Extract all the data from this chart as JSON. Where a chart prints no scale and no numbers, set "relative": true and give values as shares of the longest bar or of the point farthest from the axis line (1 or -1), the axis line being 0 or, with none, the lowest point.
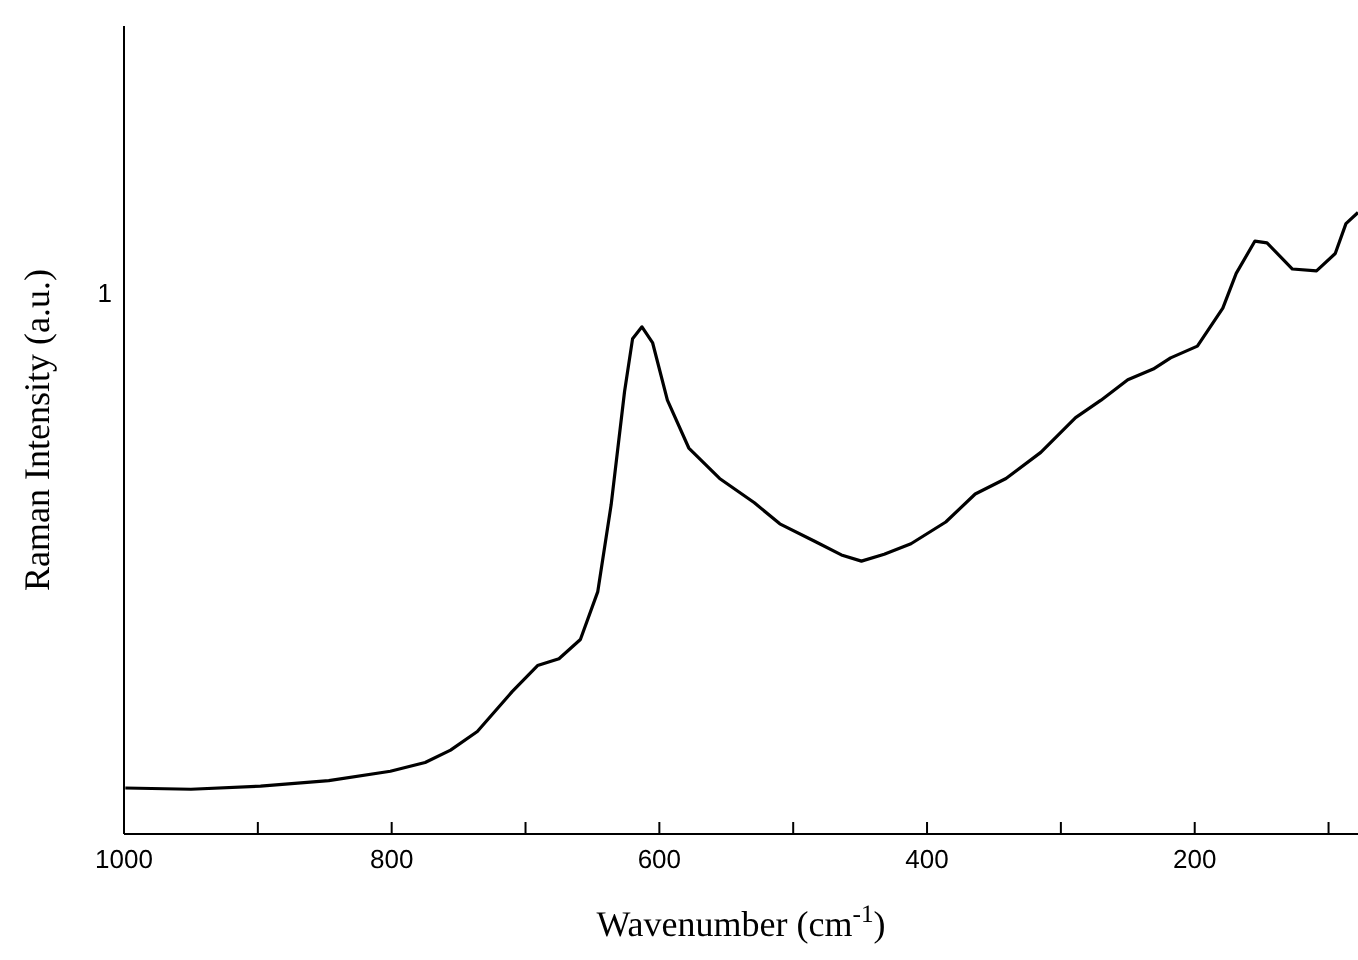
{
  "chart_data": {
    "type": "line",
    "xlabel": "Wavenumber (cm$^{-1}$)",
    "ylabel": "Raman Intensity (a.u.)",
    "xlim": [
      1000,
      78
    ],
    "xticks": [
      1000,
      {
        "value": 900,
        "label": null
      },
      800,
      {
        "value": 700,
        "label": null
      },
      600,
      {
        "value": 500,
        "label": null
      },
      400,
      {
        "value": 300,
        "label": null
      },
      200,
      {
        "value": 100,
        "label": null
      }
    ],
    "relative": true,
    "annotations": [
      "1"
    ],
    "x": [
      999,
      950,
      898,
      847,
      801,
      775,
      756,
      736,
      710,
      691,
      675,
      659,
      646,
      636,
      626,
      620,
      613,
      605,
      594,
      578,
      555,
      529,
      510,
      484,
      464,
      449,
      432,
      412,
      386,
      364,
      341,
      315,
      289,
      270,
      250,
      231,
      218,
      198,
      179,
      169,
      155,
      146,
      127,
      109,
      95,
      87,
      78
    ],
    "series": [
      {
        "color": "#000000",
        "values": [
          0.074,
          0.072,
          0.077,
          0.086,
          0.101,
          0.115,
          0.135,
          0.165,
          0.229,
          0.271,
          0.282,
          0.313,
          0.39,
          0.53,
          0.712,
          0.797,
          0.816,
          0.79,
          0.698,
          0.621,
          0.572,
          0.533,
          0.499,
          0.471,
          0.449,
          0.439,
          0.45,
          0.467,
          0.502,
          0.547,
          0.572,
          0.614,
          0.67,
          0.698,
          0.731,
          0.748,
          0.766,
          0.785,
          0.846,
          0.902,
          0.954,
          0.951,
          0.909,
          0.906,
          0.934,
          0.982,
          1.0
        ]
      }
    ],
    "legend": false,
    "grid": false,
    "marker": "none",
    "line_style": "solid"
  }
}
